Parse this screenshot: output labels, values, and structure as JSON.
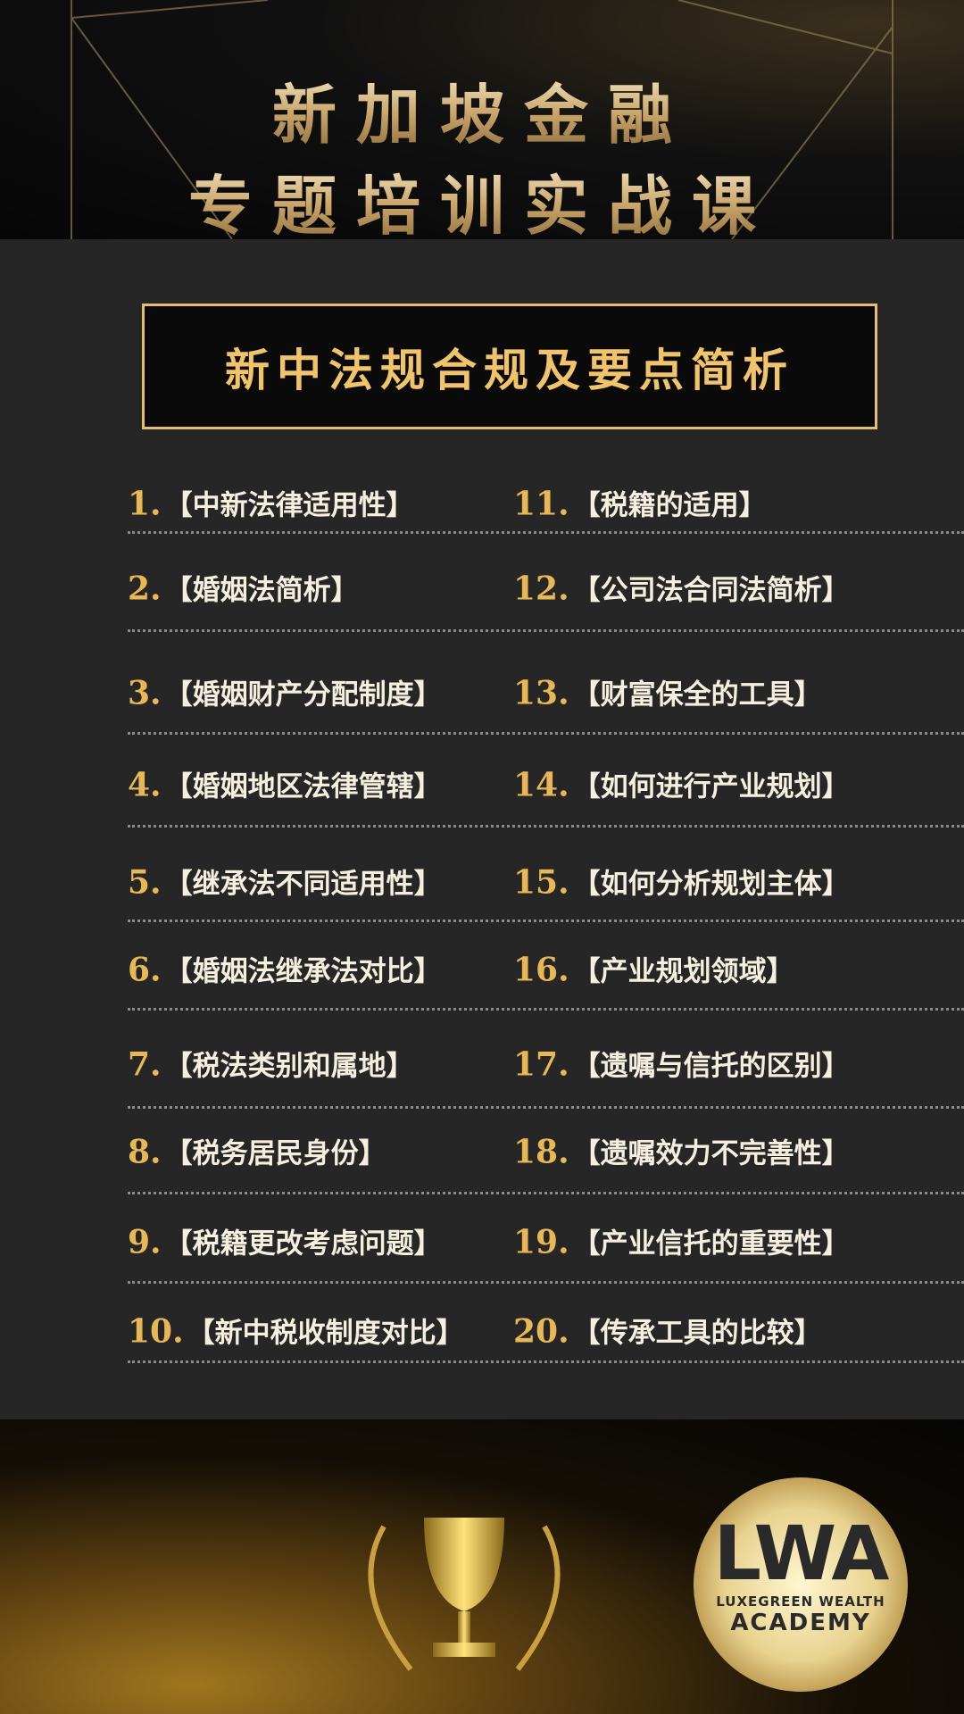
{
  "header": {
    "title_line1": "新加坡金融",
    "title_line2": "专题培训实战课"
  },
  "section_title": "新中法规合规及要点简析",
  "items": [
    {
      "num": "1.",
      "label": "【中新法律适用性】"
    },
    {
      "num": "2.",
      "label": "【婚姻法简析】"
    },
    {
      "num": "3.",
      "label": "【婚姻财产分配制度】"
    },
    {
      "num": "4.",
      "label": "【婚姻地区法律管辖】"
    },
    {
      "num": "5.",
      "label": "【继承法不同适用性】"
    },
    {
      "num": "6.",
      "label": "【婚姻法继承法对比】"
    },
    {
      "num": "7.",
      "label": "【税法类别和属地】"
    },
    {
      "num": "8.",
      "label": "【税务居民身份】"
    },
    {
      "num": "9.",
      "label": "【税籍更改考虑问题】"
    },
    {
      "num": "10.",
      "label": "【新中税收制度对比】"
    },
    {
      "num": "11.",
      "label": "【税籍的适用】"
    },
    {
      "num": "12.",
      "label": "【公司法合同法简析】"
    },
    {
      "num": "13.",
      "label": "【财富保全的工具】"
    },
    {
      "num": "14.",
      "label": "【如何进行产业规划】"
    },
    {
      "num": "15.",
      "label": "【如何分析规划主体】"
    },
    {
      "num": "16.",
      "label": "【产业规划领域】"
    },
    {
      "num": "17.",
      "label": "【遗嘱与信托的区别】"
    },
    {
      "num": "18.",
      "label": "【遗嘱效力不完善性】"
    },
    {
      "num": "19.",
      "label": "【产业信托的重要性】"
    },
    {
      "num": "20.",
      "label": "【传承工具的比较】"
    }
  ],
  "logo": {
    "mark": "LWA",
    "line1": "LUXEGREEN WEALTH",
    "line2": "ACADEMY"
  },
  "colors": {
    "gold": "#e8b856",
    "panel": "#262626",
    "text": "#f5efe0"
  }
}
